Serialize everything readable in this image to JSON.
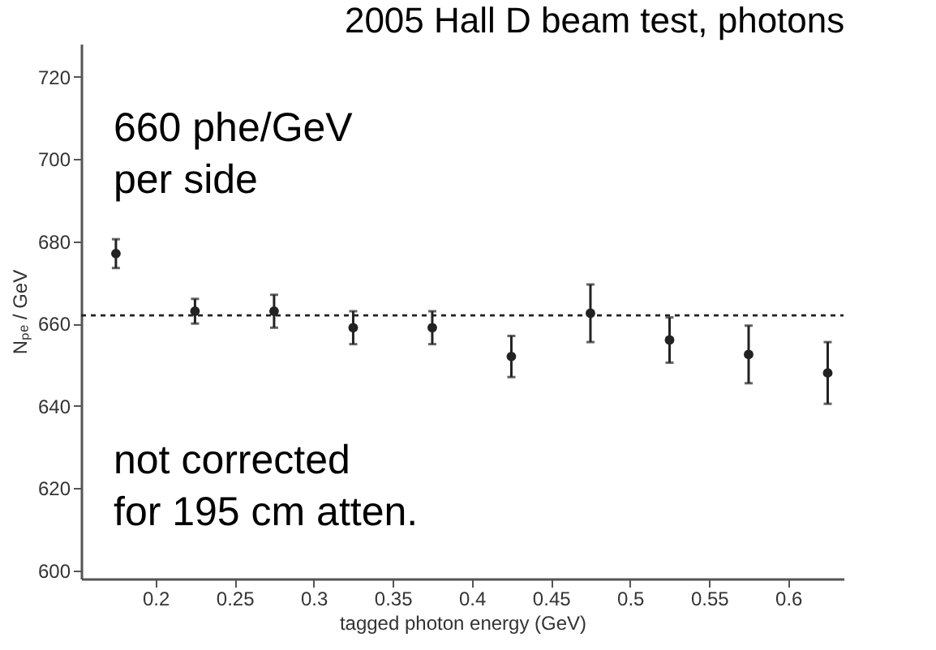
{
  "chart_data": {
    "type": "scatter",
    "title": "2005 Hall D beam test, photons",
    "xlabel": "tagged photon energy (GeV)",
    "ylabel": "Nₚₑ / GeV",
    "x": [
      0.175,
      0.225,
      0.275,
      0.325,
      0.375,
      0.425,
      0.475,
      0.525,
      0.575,
      0.625
    ],
    "series": [
      {
        "color": "#222222",
        "values": [
          677,
          663,
          663,
          659,
          659,
          652,
          662.5,
          656,
          652.5,
          648
        ],
        "errors": [
          3.5,
          3,
          4,
          4,
          4,
          5,
          7,
          5.5,
          7,
          7.5
        ]
      }
    ],
    "marker": "circle",
    "xlim": [
      0.153,
      0.635
    ],
    "ylim": [
      598,
      728
    ],
    "xticks": [
      0.2,
      0.25,
      0.3,
      0.35,
      0.4,
      0.45,
      0.5,
      0.55,
      0.6
    ],
    "yticks": [
      600,
      620,
      640,
      660,
      680,
      700,
      720
    ],
    "ref_lines": [
      {
        "axis": "y",
        "value": 662,
        "color": "#222222",
        "line_style": "dotted"
      }
    ],
    "annotations": [
      "660 phe/GeV\nper side",
      "not corrected\nfor 195 cm atten."
    ],
    "grid": false
  }
}
